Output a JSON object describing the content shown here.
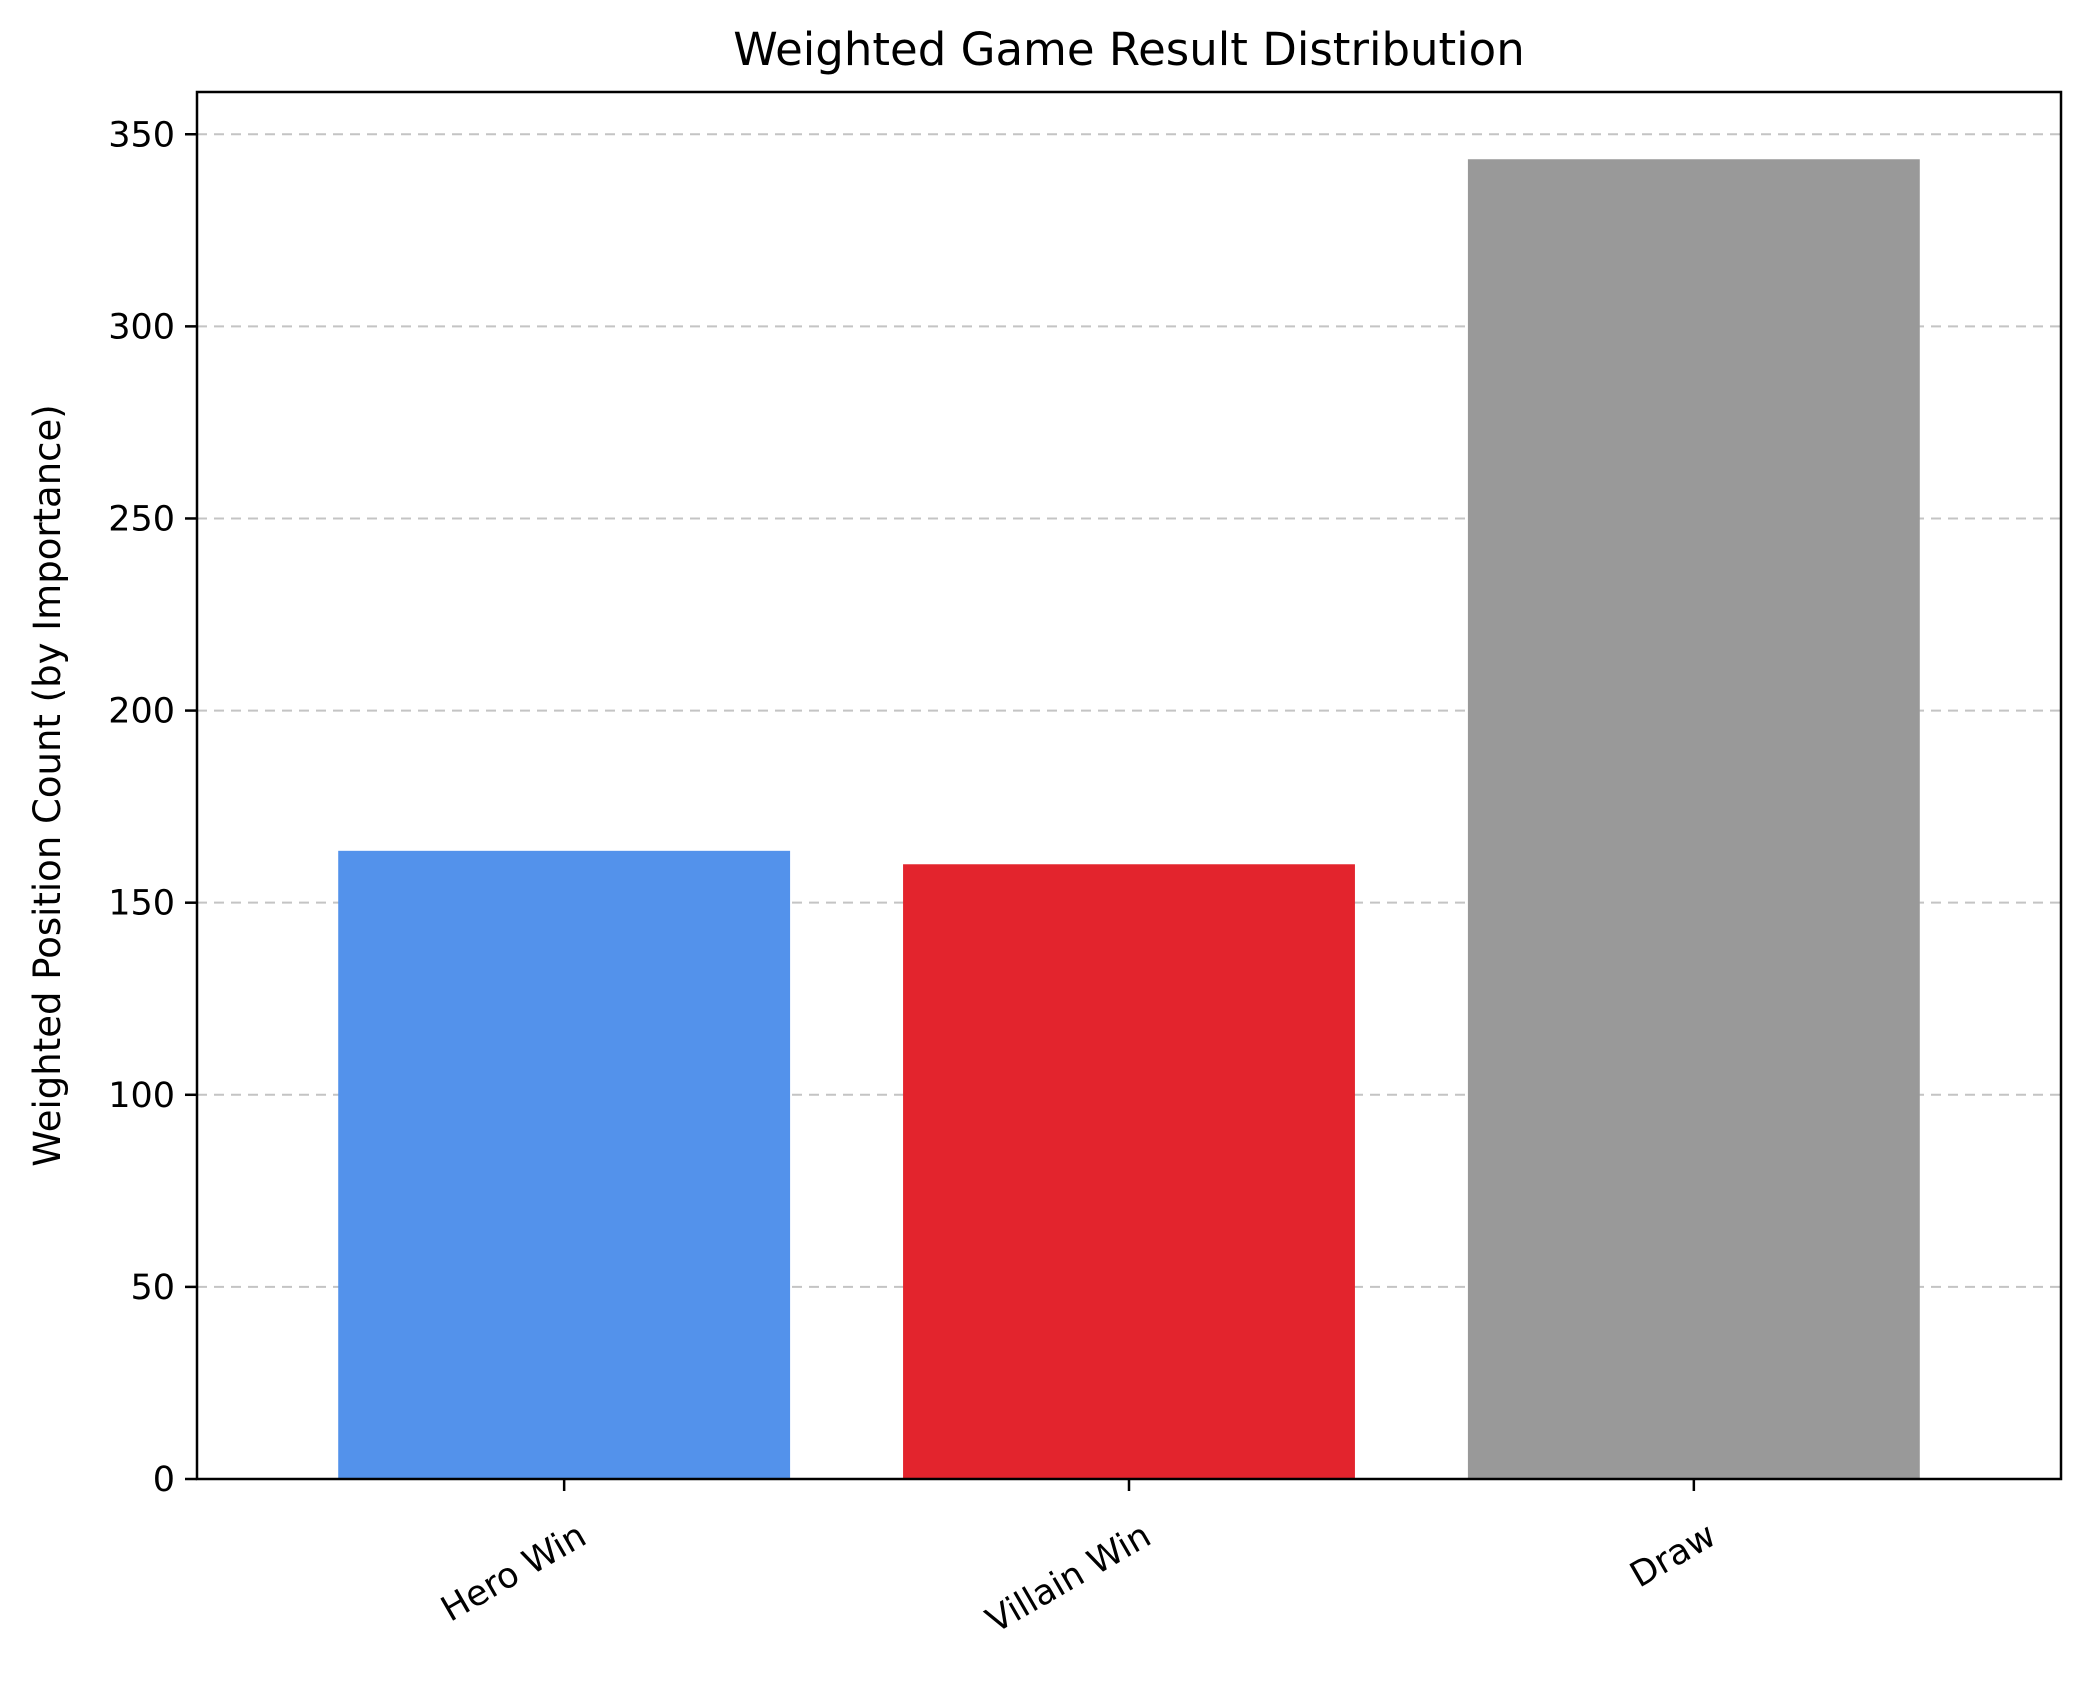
{
  "chart_data": {
    "type": "bar",
    "title": "Weighted Game Result Distribution",
    "xlabel": "",
    "ylabel": "Weighted Position Count (by Importance)",
    "categories": [
      "Hero Win",
      "Villain Win",
      "Draw"
    ],
    "values": [
      163.5,
      160.0,
      343.5
    ],
    "colors": [
      "#5392eb",
      "#e3242d",
      "#999999"
    ],
    "ylim": [
      0,
      361
    ],
    "yticks": [
      0,
      50,
      100,
      150,
      200,
      250,
      300,
      350
    ],
    "grid": "y-dashed",
    "legend": "none"
  }
}
